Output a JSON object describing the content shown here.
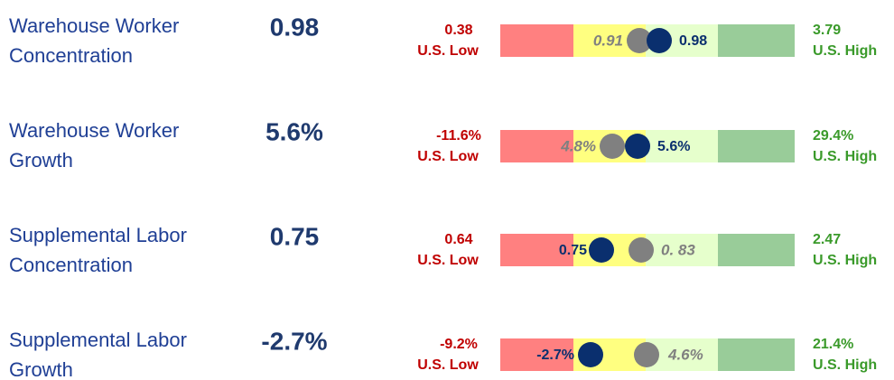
{
  "rows": [
    {
      "label": [
        "Warehouse Worker",
        "Concentration"
      ],
      "value": "0.98",
      "low": "0.38",
      "low_label": "U.S. Low",
      "high": "3.79",
      "high_label": "U.S. High",
      "benchmark": "0.91",
      "current": "0.98"
    },
    {
      "label": [
        "Warehouse Worker",
        "Growth"
      ],
      "value": "5.6%",
      "low": "-11.6%",
      "low_label": "U.S. Low",
      "high": "29.4%",
      "high_label": "U.S. High",
      "benchmark": "4.8%",
      "current": "5.6%"
    },
    {
      "label": [
        "Supplemental Labor",
        "Concentration"
      ],
      "value": "0.75",
      "low": "0.64",
      "low_label": "U.S. Low",
      "high": "2.47",
      "high_label": "U.S. High",
      "benchmark": "0. 83",
      "current": "0.75"
    },
    {
      "label": [
        "Supplemental Labor",
        "Growth"
      ],
      "value": "-2.7%",
      "low": "-9.2%",
      "low_label": "U.S. Low",
      "high": "21.4%",
      "high_label": "U.S. High",
      "benchmark": "4.6%",
      "current": "-2.7%"
    }
  ]
}
